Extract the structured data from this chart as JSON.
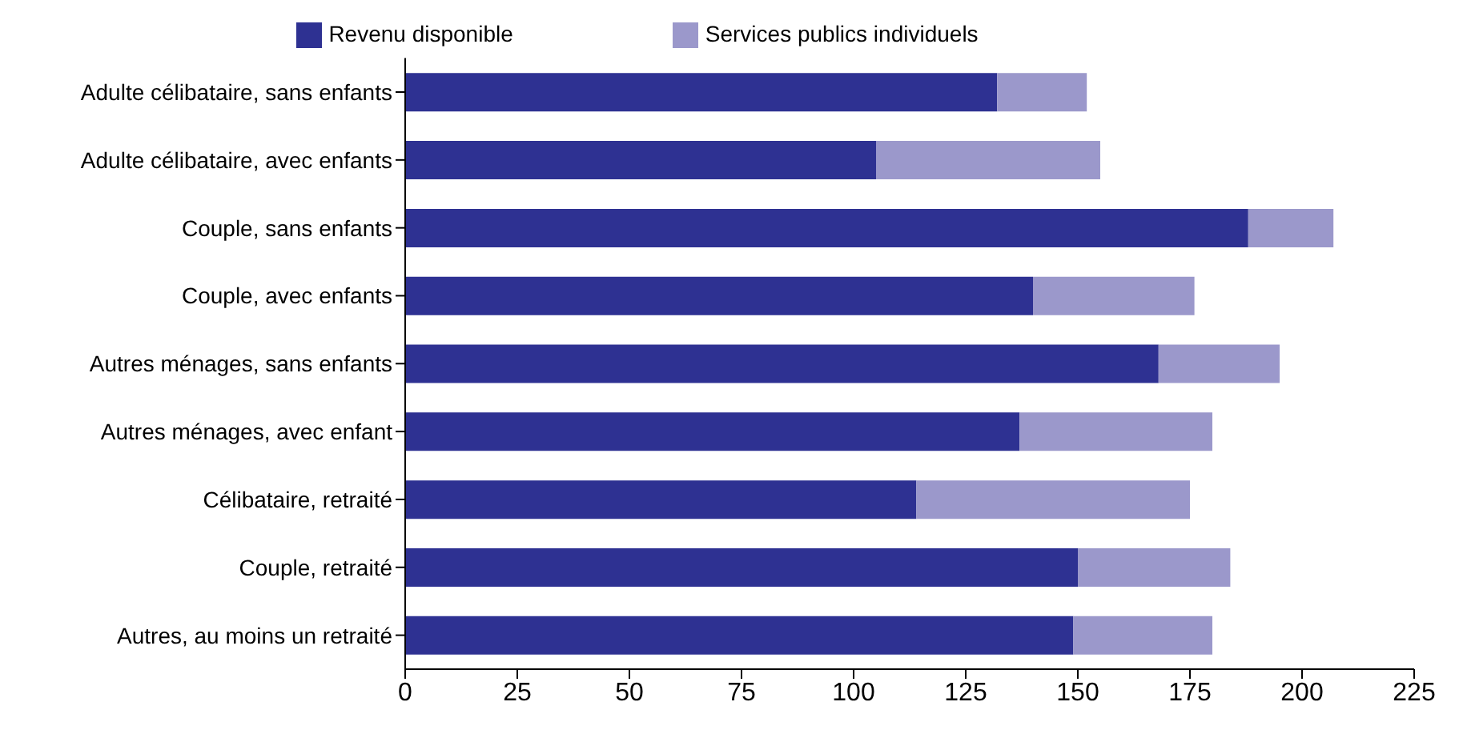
{
  "chart_data": {
    "type": "bar",
    "orientation": "horizontal",
    "stacked": true,
    "categories": [
      "Adulte célibataire, sans enfants",
      "Adulte célibataire, avec enfants",
      "Couple, sans enfants",
      "Couple, avec enfants",
      "Autres ménages, sans enfants",
      "Autres ménages, avec enfant",
      "Célibataire, retraité",
      "Couple, retraité",
      "Autres, au moins un retraité"
    ],
    "series": [
      {
        "name": "Revenu disponible",
        "color": "#2e3192",
        "values": [
          132,
          105,
          188,
          140,
          168,
          137,
          114,
          150,
          149
        ]
      },
      {
        "name": "Services publics individuels",
        "color": "#9b98cb",
        "values": [
          20,
          50,
          19,
          36,
          27,
          43,
          61,
          34,
          31
        ]
      }
    ],
    "xlim": [
      0,
      225
    ],
    "xticks": [
      0,
      25,
      50,
      75,
      100,
      125,
      150,
      175,
      200,
      225
    ],
    "grid": false,
    "legend": "top"
  }
}
